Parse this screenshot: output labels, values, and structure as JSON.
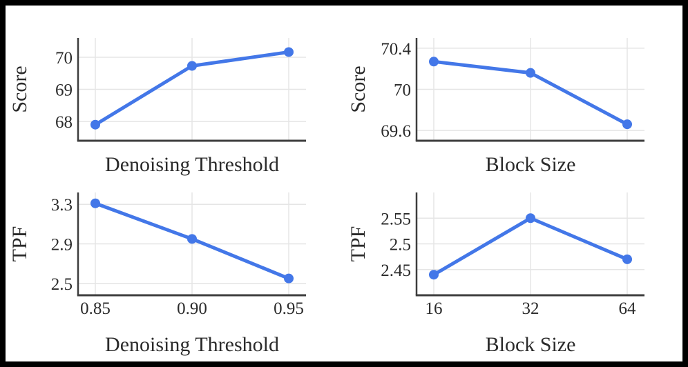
{
  "figure": {
    "background": "#ffffff",
    "frame_color": "#000000",
    "accent_color": "#4377e8",
    "grid_color": "#e5e5e5",
    "spine_color": "#3d3d3d",
    "text_color": "#2b2b2b"
  },
  "chart_data": [
    {
      "id": "score-vs-denoising-threshold",
      "type": "line",
      "title": "",
      "categories": [
        "0.85",
        "0.90",
        "0.95"
      ],
      "values": [
        67.9,
        69.73,
        70.16
      ],
      "xlabel": "Denoising Threshold",
      "ylabel": "Score",
      "ytick_values": [
        68,
        69,
        70
      ],
      "ytick_labels": [
        "68",
        "69",
        "70"
      ],
      "ylim": [
        67.4,
        70.6
      ],
      "show_x_ticks": false,
      "grid": true,
      "legend": "none"
    },
    {
      "id": "score-vs-block-size",
      "type": "line",
      "title": "",
      "categories": [
        "16",
        "32",
        "64"
      ],
      "values": [
        70.27,
        70.16,
        69.66
      ],
      "xlabel": "Block Size",
      "ylabel": "Score",
      "ytick_values": [
        69.6,
        70,
        70.4
      ],
      "ytick_labels": [
        "69.6",
        "70",
        "70.4"
      ],
      "ylim": [
        69.5,
        70.5
      ],
      "show_x_ticks": false,
      "grid": true,
      "legend": "none"
    },
    {
      "id": "tpf-vs-denoising-threshold",
      "type": "line",
      "title": "",
      "categories": [
        "0.85",
        "0.90",
        "0.95"
      ],
      "values": [
        3.31,
        2.95,
        2.55
      ],
      "xlabel": "Denoising Threshold",
      "ylabel": "TPF",
      "ytick_values": [
        2.5,
        2.9,
        3.3
      ],
      "ytick_labels": [
        "2.5",
        "2.9",
        "3.3"
      ],
      "ylim": [
        2.38,
        3.42
      ],
      "show_x_ticks": true,
      "grid": true,
      "legend": "none"
    },
    {
      "id": "tpf-vs-block-size",
      "type": "line",
      "title": "",
      "categories": [
        "16",
        "32",
        "64"
      ],
      "values": [
        2.44,
        2.55,
        2.47
      ],
      "xlabel": "Block Size",
      "ylabel": "TPF",
      "ytick_values": [
        2.45,
        2.5,
        2.55
      ],
      "ytick_labels": [
        "2.45",
        "2.5",
        "2.55"
      ],
      "ylim": [
        2.4,
        2.6
      ],
      "show_x_ticks": true,
      "grid": true,
      "legend": "none"
    }
  ]
}
